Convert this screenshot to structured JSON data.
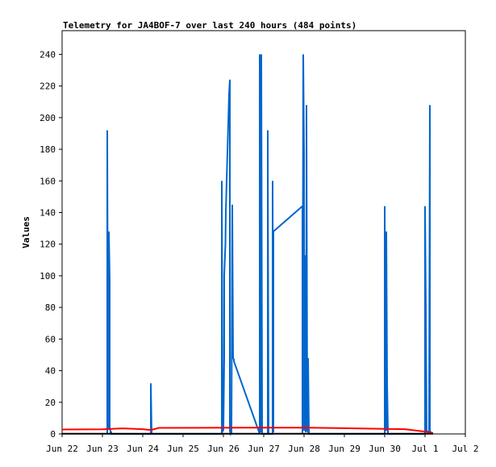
{
  "chart_data": {
    "type": "line",
    "title": "Telemetry for JA4BOF-7 over last 240 hours (484 points)",
    "xlabel": "",
    "ylabel": "Values",
    "x_ticks": [
      "Jun 22",
      "Jun 23",
      "Jun 24",
      "Jun 25",
      "Jun 26",
      "Jun 27",
      "Jun 28",
      "Jun 29",
      "Jun 30",
      "Jul 1",
      "Jul 2"
    ],
    "xlim_days": [
      0,
      10
    ],
    "ylim": [
      0,
      255
    ],
    "y_ticks": [
      0,
      20,
      40,
      60,
      80,
      100,
      120,
      140,
      160,
      180,
      200,
      220,
      240
    ],
    "grid": false,
    "legend": "none",
    "series": [
      {
        "color": "#0066cc",
        "days": [
          1.12,
          1.12,
          1.14,
          1.16,
          1.16,
          1.18,
          1.18,
          1.2,
          1.2,
          1.22,
          1.22,
          2.2,
          2.2,
          2.22,
          3.96,
          3.96,
          3.98,
          4.0,
          4.0,
          4.02,
          4.02,
          4.05,
          4.06,
          4.08,
          4.1,
          4.12,
          4.14,
          4.16,
          4.16,
          4.18,
          4.2,
          4.22,
          4.24,
          4.26,
          4.26,
          4.9,
          4.9,
          4.92,
          4.94,
          4.96,
          4.96,
          5.1,
          5.1,
          5.12,
          5.12,
          5.22,
          5.22,
          5.24,
          5.24,
          5.96,
          5.96,
          5.98,
          6.0,
          6.0,
          6.02,
          6.04,
          6.06,
          6.06,
          6.08,
          6.1,
          6.1,
          6.12,
          6.12,
          6.14,
          8.0,
          8.0,
          8.02,
          8.04,
          8.04,
          8.06,
          8.08,
          8.08,
          9.0,
          9.0,
          9.02,
          9.04,
          9.08,
          9.1,
          9.12,
          9.12,
          9.14
        ],
        "values": [
          0,
          192,
          3,
          16,
          128,
          97,
          3,
          2,
          1,
          1,
          0,
          0,
          32,
          0,
          0,
          160,
          1,
          32,
          2,
          48,
          100,
          120,
          140,
          160,
          178,
          196,
          215,
          224,
          2,
          0,
          1,
          145,
          48,
          47,
          46,
          0,
          240,
          1,
          240,
          2,
          0,
          0,
          192,
          1,
          0,
          0,
          160,
          1,
          128,
          144,
          0,
          240,
          177,
          2,
          113,
          1,
          156,
          208,
          2,
          1,
          48,
          1,
          0,
          0,
          0,
          144,
          8,
          2,
          128,
          32,
          1,
          0,
          0,
          144,
          80,
          2,
          1,
          1,
          208,
          2,
          1
        ]
      },
      {
        "color": "#ff0000",
        "days": [
          0,
          1.0,
          1.5,
          2.0,
          2.2,
          2.4,
          4.5,
          6.0,
          7.0,
          8.0,
          8.5,
          9.0,
          9.2
        ],
        "values": [
          2.8,
          2.9,
          3.5,
          3.0,
          2.5,
          3.8,
          4.0,
          4.0,
          3.6,
          3.2,
          3.0,
          1.5,
          0.6
        ]
      },
      {
        "color": "#000000",
        "days": [
          0,
          9.2
        ],
        "values": [
          0.1,
          0.1
        ]
      }
    ]
  }
}
